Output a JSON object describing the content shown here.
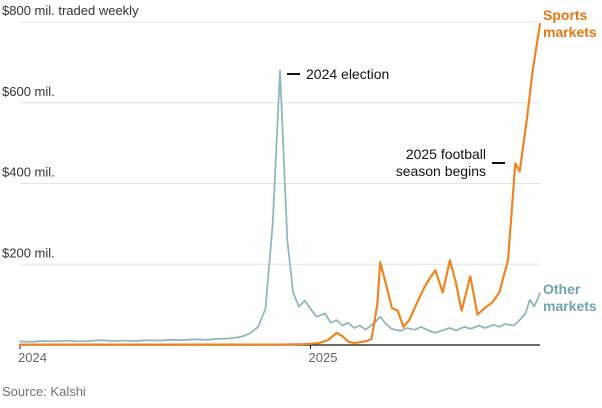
{
  "source": {
    "text": "Source: Kalshi"
  },
  "chart_data": {
    "type": "line",
    "title": "",
    "xlabel": "",
    "ylabel": "$ mil. traded weekly",
    "x_range": [
      2024.0,
      2025.79
    ],
    "y_range": [
      0,
      800
    ],
    "grid": true,
    "legend_position": "right-edge-labels",
    "y_ticks": [
      {
        "value": 800,
        "label": "$800 mil. traded weekly"
      },
      {
        "value": 600,
        "label": "$600 mil."
      },
      {
        "value": 400,
        "label": "$400 mil."
      },
      {
        "value": 200,
        "label": "$200 mil."
      }
    ],
    "x_ticks": [
      {
        "value": 2024,
        "label": "2024"
      },
      {
        "value": 2025,
        "label": "2025"
      }
    ],
    "annotations": [
      {
        "text": "2024 election",
        "x": 2024.9,
        "y": 680
      },
      {
        "text": "2025 football season begins",
        "x": 2025.7,
        "y": 450
      }
    ],
    "series": [
      {
        "name": "Sports markets",
        "color": "#ee8420",
        "label_color": "#e8740e",
        "stroke_width": 2.2,
        "points": [
          [
            2024.0,
            1
          ],
          [
            2024.1,
            1
          ],
          [
            2024.2,
            1
          ],
          [
            2024.3,
            1
          ],
          [
            2024.4,
            1
          ],
          [
            2024.5,
            1
          ],
          [
            2024.6,
            1
          ],
          [
            2024.7,
            1
          ],
          [
            2024.8,
            1
          ],
          [
            2024.9,
            1
          ],
          [
            2024.97,
            2
          ],
          [
            2025.0,
            3
          ],
          [
            2025.03,
            5
          ],
          [
            2025.06,
            12
          ],
          [
            2025.09,
            30
          ],
          [
            2025.11,
            22
          ],
          [
            2025.13,
            8
          ],
          [
            2025.15,
            5
          ],
          [
            2025.17,
            7
          ],
          [
            2025.19,
            9
          ],
          [
            2025.21,
            15
          ],
          [
            2025.23,
            100
          ],
          [
            2025.24,
            205
          ],
          [
            2025.26,
            150
          ],
          [
            2025.28,
            92
          ],
          [
            2025.3,
            85
          ],
          [
            2025.32,
            45
          ],
          [
            2025.34,
            62
          ],
          [
            2025.37,
            110
          ],
          [
            2025.39,
            140
          ],
          [
            2025.41,
            165
          ],
          [
            2025.43,
            185
          ],
          [
            2025.455,
            130
          ],
          [
            2025.48,
            210
          ],
          [
            2025.5,
            155
          ],
          [
            2025.52,
            85
          ],
          [
            2025.55,
            170
          ],
          [
            2025.575,
            75
          ],
          [
            2025.6,
            92
          ],
          [
            2025.625,
            105
          ],
          [
            2025.65,
            130
          ],
          [
            2025.68,
            210
          ],
          [
            2025.705,
            450
          ],
          [
            2025.72,
            430
          ],
          [
            2025.745,
            560
          ],
          [
            2025.765,
            680
          ],
          [
            2025.79,
            795
          ]
        ]
      },
      {
        "name": "Other markets",
        "color": "#91b7be",
        "label_color": "#6fa3ae",
        "stroke_width": 1.8,
        "points": [
          [
            2024.0,
            9
          ],
          [
            2024.04,
            8
          ],
          [
            2024.08,
            10
          ],
          [
            2024.12,
            9
          ],
          [
            2024.16,
            11
          ],
          [
            2024.2,
            9
          ],
          [
            2024.24,
            10
          ],
          [
            2024.28,
            12
          ],
          [
            2024.32,
            10
          ],
          [
            2024.36,
            11
          ],
          [
            2024.4,
            10
          ],
          [
            2024.44,
            12
          ],
          [
            2024.48,
            11
          ],
          [
            2024.52,
            13
          ],
          [
            2024.56,
            12
          ],
          [
            2024.6,
            14
          ],
          [
            2024.64,
            13
          ],
          [
            2024.68,
            15
          ],
          [
            2024.72,
            16
          ],
          [
            2024.76,
            20
          ],
          [
            2024.79,
            28
          ],
          [
            2024.82,
            45
          ],
          [
            2024.845,
            90
          ],
          [
            2024.87,
            300
          ],
          [
            2024.895,
            680
          ],
          [
            2024.92,
            260
          ],
          [
            2024.94,
            130
          ],
          [
            2024.96,
            95
          ],
          [
            2024.98,
            110
          ],
          [
            2025.0,
            90
          ],
          [
            2025.02,
            70
          ],
          [
            2025.05,
            78
          ],
          [
            2025.07,
            55
          ],
          [
            2025.09,
            62
          ],
          [
            2025.11,
            48
          ],
          [
            2025.13,
            55
          ],
          [
            2025.15,
            42
          ],
          [
            2025.17,
            48
          ],
          [
            2025.19,
            38
          ],
          [
            2025.22,
            55
          ],
          [
            2025.24,
            70
          ],
          [
            2025.26,
            52
          ],
          [
            2025.28,
            40
          ],
          [
            2025.31,
            35
          ],
          [
            2025.33,
            42
          ],
          [
            2025.36,
            38
          ],
          [
            2025.38,
            45
          ],
          [
            2025.41,
            35
          ],
          [
            2025.43,
            30
          ],
          [
            2025.46,
            38
          ],
          [
            2025.48,
            42
          ],
          [
            2025.5,
            36
          ],
          [
            2025.53,
            45
          ],
          [
            2025.55,
            40
          ],
          [
            2025.58,
            48
          ],
          [
            2025.6,
            42
          ],
          [
            2025.63,
            50
          ],
          [
            2025.65,
            45
          ],
          [
            2025.67,
            52
          ],
          [
            2025.7,
            48
          ],
          [
            2025.72,
            62
          ],
          [
            2025.74,
            78
          ],
          [
            2025.755,
            112
          ],
          [
            2025.77,
            95
          ],
          [
            2025.79,
            128
          ]
        ]
      }
    ]
  }
}
